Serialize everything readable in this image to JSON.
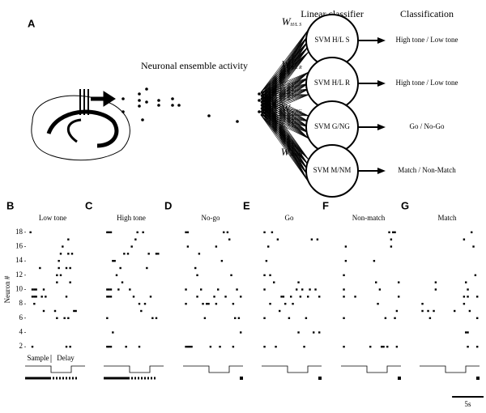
{
  "figure": {
    "panel_label": "A",
    "ensemble_label": "Neuronal ensemble activity",
    "classifier_header": "Linear classifier",
    "classification_header": "Classification",
    "classifiers": [
      {
        "weight": "W",
        "weight_sub": "H/L S",
        "name": "SVM H/L S",
        "output": "High tone /  Low tone"
      },
      {
        "weight": "W",
        "weight_sub": "H/L R",
        "name": "SVM H/L R",
        "output": "High tone /  Low tone"
      },
      {
        "weight": "W",
        "weight_sub": "G/NG",
        "name": "SVM G/NG",
        "output": "Go / No-Go"
      },
      {
        "weight": "W",
        "weight_sub": "M/NM",
        "name": "SVM M/NM",
        "output": "Match / Non-Match"
      }
    ],
    "scale_bar": {
      "value": 5,
      "label": "5s"
    }
  },
  "chart_data": [
    {
      "type": "scatter",
      "panel": "B",
      "title": "Low tone",
      "ylabel": "Neuron #",
      "annotations": [
        "Sample",
        "Delay"
      ],
      "xlim": [
        0,
        9
      ],
      "ylim": [
        1,
        19
      ],
      "yticks": [
        2,
        4,
        6,
        8,
        10,
        12,
        14,
        16,
        18
      ],
      "x": [
        0.6,
        0.9,
        0.9,
        1.2,
        1.5,
        0.9,
        1.2,
        1.5,
        1.2,
        2.1,
        2.4,
        2.7,
        2.7,
        3.0,
        4.5,
        4.8,
        4.8,
        4.8,
        5.1,
        5.1,
        5.4,
        5.4,
        5.7,
        6.0,
        6.3,
        6.6,
        6.6,
        6.9,
        6.9,
        6.9,
        6.3,
        6.3,
        7.2,
        7.5,
        6.6,
        7.8
      ],
      "y": [
        18,
        2,
        10,
        10,
        10,
        9,
        9,
        9,
        8,
        13,
        9,
        10,
        7,
        9,
        7,
        6,
        11,
        12,
        13,
        14,
        12,
        15,
        16,
        6,
        13,
        17,
        15,
        13,
        11,
        2,
        2,
        9,
        15,
        7,
        6,
        7
      ]
    },
    {
      "type": "scatter",
      "panel": "C",
      "title": "High tone",
      "xlim": [
        0,
        9
      ],
      "ylim": [
        1,
        19
      ],
      "x": [
        0.3,
        0.6,
        0.9,
        0.3,
        0.6,
        0.9,
        0.3,
        0.6,
        0.9,
        0.3,
        0.3,
        0.6,
        0.9,
        1.2,
        1.5,
        1.2,
        1.8,
        2.1,
        2.4,
        2.7,
        3.0,
        3.3,
        3.6,
        3.9,
        4.2,
        4.5,
        4.8,
        5.1,
        5.4,
        5.7,
        6.0,
        6.3,
        6.6,
        6.9,
        7.2,
        7.5,
        8.1,
        8.4,
        8.1,
        5.4
      ],
      "y": [
        18,
        18,
        18,
        10,
        10,
        10,
        9,
        9,
        9,
        6,
        2,
        2,
        2,
        14,
        14,
        4,
        12,
        10,
        13,
        11,
        15,
        2,
        15,
        10,
        16,
        9,
        17,
        18,
        8,
        7,
        18,
        8,
        13,
        15,
        9,
        6,
        15,
        15,
        6,
        2
      ]
    },
    {
      "type": "scatter",
      "panel": "D",
      "title": "No-go",
      "xlim": [
        0,
        9
      ],
      "ylim": [
        1,
        19
      ],
      "x": [
        0.2,
        0.5,
        0.2,
        0.2,
        0.2,
        0.5,
        0.8,
        1.1,
        0.5,
        1.7,
        2.0,
        2.0,
        2.3,
        2.6,
        2.9,
        3.2,
        3.5,
        3.8,
        4.1,
        4.7,
        5.0,
        5.3,
        5.6,
        5.9,
        6.2,
        6.5,
        6.8,
        7.1,
        7.4,
        7.7,
        8.0,
        8.3,
        8.6,
        8.9,
        8.9,
        7.7,
        5.0
      ],
      "y": [
        18,
        18,
        10,
        8,
        2,
        2,
        2,
        2,
        16,
        13,
        12,
        9,
        15,
        10,
        8,
        6,
        8,
        8,
        2,
        9,
        8,
        10,
        2,
        14,
        18,
        9,
        18,
        17,
        12,
        8,
        6,
        10,
        6,
        4,
        9,
        2,
        16
      ]
    },
    {
      "type": "scatter",
      "panel": "E",
      "title": "Go",
      "xlim": [
        0,
        9
      ],
      "ylim": [
        1,
        19
      ],
      "x": [
        0.2,
        0.2,
        0.2,
        0.2,
        0.2,
        0.5,
        0.8,
        1.1,
        1.4,
        1.7,
        1.1,
        2.0,
        2.3,
        2.6,
        2.9,
        3.2,
        3.5,
        4.1,
        4.4,
        4.7,
        5.3,
        5.6,
        5.9,
        6.2,
        5.6,
        6.5,
        6.8,
        7.1,
        7.4,
        7.7,
        8.0,
        8.3,
        8.6,
        8.9,
        8.9
      ],
      "y": [
        18,
        12,
        10,
        6,
        2,
        14,
        16,
        12,
        18,
        11,
        8,
        2,
        17,
        7,
        9,
        9,
        8,
        6,
        9,
        8,
        10,
        11,
        9,
        10,
        4,
        2,
        6,
        9,
        10,
        17,
        4,
        10,
        17,
        9,
        4
      ]
    },
    {
      "type": "scatter",
      "panel": "F",
      "title": "Non-match",
      "xlim": [
        0,
        9
      ],
      "ylim": [
        1,
        19
      ],
      "x": [
        0.2,
        0.2,
        0.2,
        0.2,
        0.2,
        0.5,
        0.5,
        2.0,
        4.4,
        5.0,
        5.3,
        5.6,
        5.9,
        6.2,
        6.5,
        6.8,
        7.1,
        7.4,
        7.7,
        8.0,
        8.3,
        8.6,
        8.9,
        8.9,
        8.3,
        7.7,
        8.6
      ],
      "y": [
        12,
        10,
        9,
        6,
        2,
        14,
        16,
        9,
        2,
        14,
        11,
        8,
        10,
        2,
        2,
        6,
        2,
        18,
        17,
        18,
        18,
        2,
        11,
        9,
        6,
        16,
        7
      ]
    },
    {
      "type": "scatter",
      "panel": "G",
      "title": "Match",
      "xlim": [
        0,
        9
      ],
      "ylim": [
        1,
        19
      ],
      "x": [
        0.2,
        0.2,
        1.1,
        1.4,
        2.0,
        2.3,
        2.3,
        5.3,
        6.8,
        6.8,
        6.8,
        7.1,
        7.4,
        7.4,
        7.1,
        7.4,
        7.4,
        8.0,
        8.3,
        8.6,
        8.9,
        8.9,
        8.9,
        7.7
      ],
      "y": [
        8,
        7,
        7,
        6,
        7,
        10,
        11,
        7,
        17,
        9,
        8,
        11,
        10,
        9,
        4,
        4,
        2,
        18,
        16,
        12,
        9,
        6,
        2,
        7
      ]
    }
  ]
}
